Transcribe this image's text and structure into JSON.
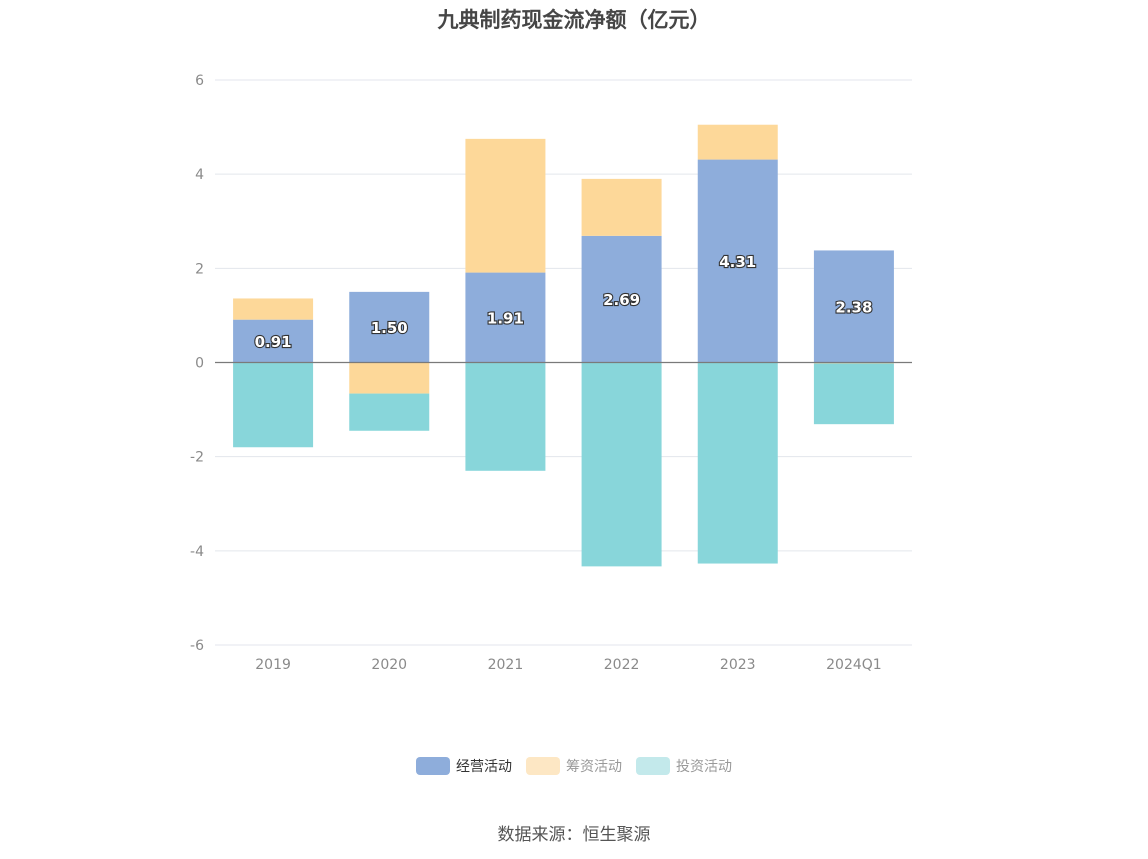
{
  "title": "九典制药现金流净额（亿元）",
  "source_note": "数据来源：恒生聚源",
  "legend": [
    {
      "name": "经营活动",
      "color": "#8eaddb",
      "active": true
    },
    {
      "name": "筹资活动",
      "color": "#fdd899",
      "active": false
    },
    {
      "name": "投资活动",
      "color": "#88d6da",
      "active": false
    }
  ],
  "chart_data": {
    "type": "bar",
    "stacked": true,
    "title": "九典制药现金流净额（亿元）",
    "categories": [
      "2019",
      "2020",
      "2021",
      "2022",
      "2023",
      "2024Q1"
    ],
    "ylim": [
      -6,
      6
    ],
    "yticks": [
      6,
      4,
      2,
      0,
      -2,
      -4,
      -6
    ],
    "grid": true,
    "legend_position": "bottom",
    "series": [
      {
        "name": "经营活动",
        "color": "#8eaddb",
        "values": [
          0.91,
          1.5,
          1.91,
          2.69,
          4.31,
          2.38
        ]
      },
      {
        "name": "筹资活动",
        "color": "#fdd899",
        "values": [
          0.45,
          -0.66,
          2.84,
          1.21,
          0.74,
          -0.02
        ]
      },
      {
        "name": "投资活动",
        "color": "#88d6da",
        "values": [
          -1.8,
          -0.79,
          -2.3,
          -4.33,
          -4.27,
          -1.29
        ]
      }
    ],
    "data_labels": [
      "0.91",
      "1.50",
      "1.91",
      "2.69",
      "4.31",
      "2.38"
    ]
  }
}
